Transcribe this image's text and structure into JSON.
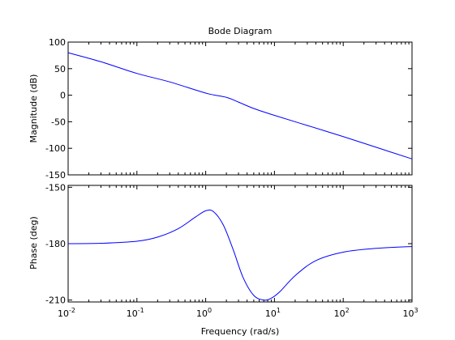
{
  "chart_data": {
    "type": "line",
    "title": "Bode Diagram",
    "xlabel": "Frequency  (rad/s)",
    "xscale": "log",
    "xlim": [
      0.01,
      1000
    ],
    "x_ticks": [
      {
        "base": "10",
        "exp": "-2"
      },
      {
        "base": "10",
        "exp": "-1"
      },
      {
        "base": "10",
        "exp": "0"
      },
      {
        "base": "10",
        "exp": "1"
      },
      {
        "base": "10",
        "exp": "2"
      },
      {
        "base": "10",
        "exp": "3"
      }
    ],
    "line_color": "#0000ff",
    "grid": false,
    "subplots": [
      {
        "ylabel": "Magnitude (dB)",
        "ylim": [
          -150,
          100
        ],
        "y_ticks": [
          "100",
          "50",
          "0",
          "-50",
          "-100",
          "-150"
        ],
        "x": [
          0.01,
          0.03,
          0.1,
          0.3,
          1,
          2,
          3,
          5,
          10,
          30,
          100,
          300,
          1000
        ],
        "y": [
          80,
          63,
          41,
          25,
          4,
          -4,
          -13,
          -25,
          -38,
          -57,
          -78,
          -98,
          -120
        ]
      },
      {
        "ylabel": "Phase (deg)",
        "ylim": [
          -211,
          -149
        ],
        "y_ticks": [
          "-150",
          "-180",
          "-210"
        ],
        "x": [
          0.01,
          0.03,
          0.1,
          0.2,
          0.4,
          0.7,
          1,
          1.3,
          1.8,
          2.5,
          3.5,
          5,
          7,
          9,
          12,
          20,
          40,
          100,
          300,
          1000
        ],
        "y": [
          -180,
          -179.8,
          -178.7,
          -176.5,
          -172,
          -166,
          -162.5,
          -163,
          -170,
          -183,
          -198,
          -207.5,
          -210,
          -209,
          -205.5,
          -197,
          -189,
          -184.5,
          -182.5,
          -181.5
        ]
      }
    ]
  }
}
